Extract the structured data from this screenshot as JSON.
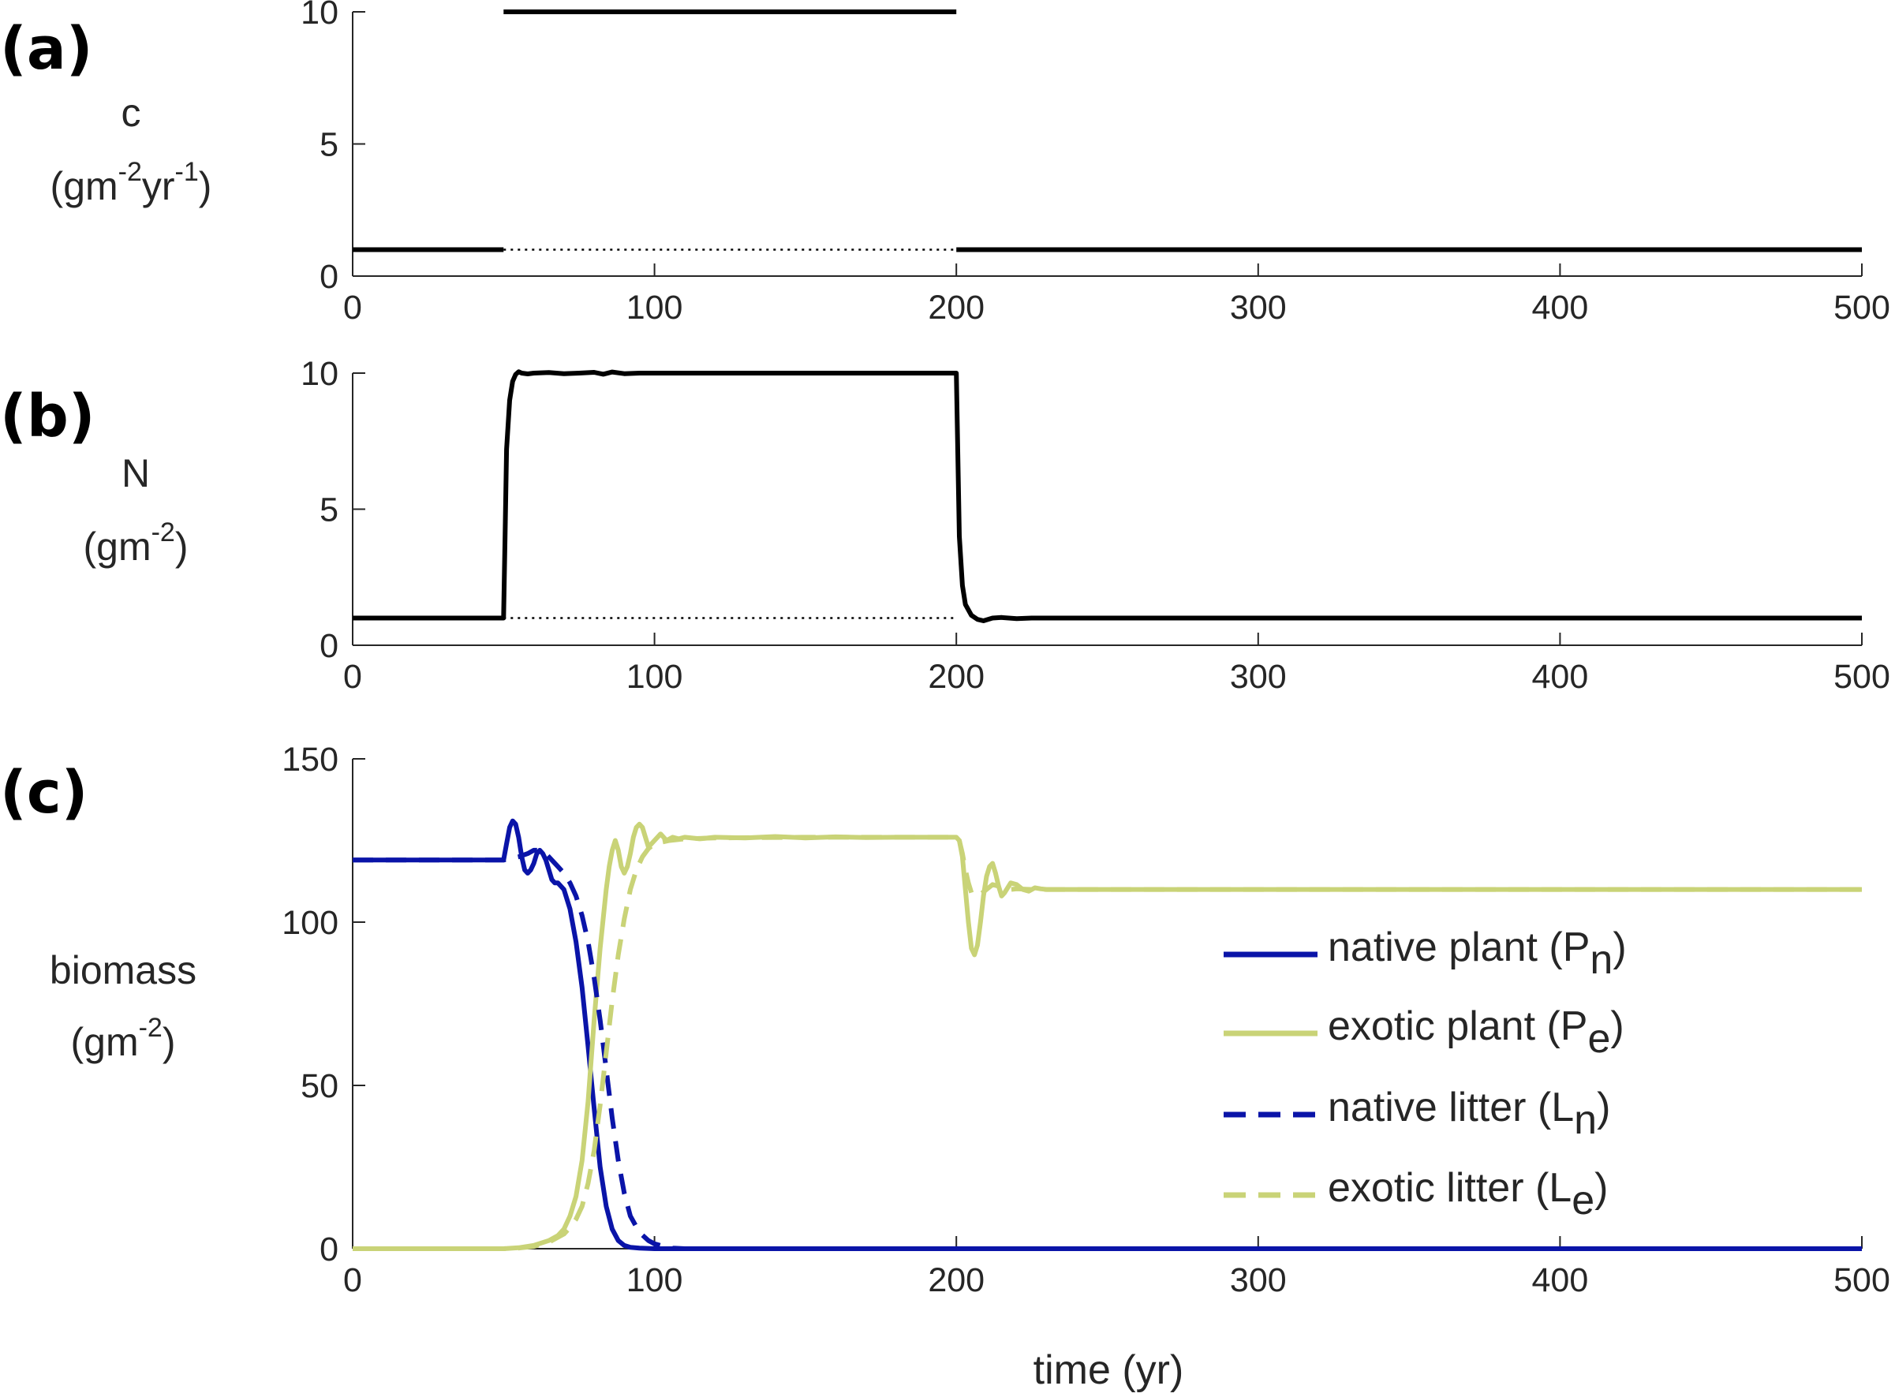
{
  "chart_data": [
    {
      "panel_label": "(a)",
      "type": "line",
      "ylabel": {
        "main": "c",
        "unit_open": "(gm",
        "sup1": "-2",
        "mid": "yr",
        "sup2": "-1",
        "unit_close": ")"
      },
      "xlim": [
        0,
        500
      ],
      "ylim": [
        0,
        10
      ],
      "xticks": [
        "0",
        "100",
        "200",
        "300",
        "400",
        "500"
      ],
      "yticks": [
        "0",
        "5",
        "10"
      ],
      "series": [
        {
          "style": "solid",
          "color": "#000000",
          "x": [
            0,
            50
          ],
          "y": [
            1,
            1
          ]
        },
        {
          "style": "solid",
          "color": "#000000",
          "x": [
            50,
            200
          ],
          "y": [
            10,
            10
          ]
        },
        {
          "style": "solid",
          "color": "#000000",
          "x": [
            200,
            500
          ],
          "y": [
            1,
            1
          ]
        },
        {
          "style": "dotted",
          "color": "#000000",
          "x": [
            50,
            200
          ],
          "y": [
            1,
            1
          ]
        }
      ]
    },
    {
      "panel_label": "(b)",
      "type": "line",
      "ylabel": {
        "main": "N",
        "unit_open": "(gm",
        "sup1": "-2",
        "unit_close": ")"
      },
      "xlim": [
        0,
        500
      ],
      "ylim": [
        0,
        10
      ],
      "xticks": [
        "0",
        "100",
        "200",
        "300",
        "400",
        "500"
      ],
      "yticks": [
        "0",
        "5",
        "10"
      ],
      "series": [
        {
          "style": "solid",
          "color": "#000000",
          "x": [
            0,
            50,
            50.5,
            51,
            52,
            53,
            54,
            55,
            56,
            58,
            60,
            65,
            70,
            75,
            80,
            83,
            86,
            90,
            95,
            100,
            120,
            150,
            180,
            199.5,
            200,
            200.5,
            201,
            202,
            203,
            205,
            207,
            209,
            212,
            215,
            220,
            225,
            230,
            240,
            500
          ],
          "y": [
            1,
            1,
            4,
            7.2,
            9.0,
            9.7,
            9.95,
            10.05,
            10.0,
            9.97,
            10.0,
            10.02,
            9.98,
            10.0,
            10.03,
            9.96,
            10.04,
            9.98,
            10.0,
            10.0,
            10.0,
            10.0,
            10.0,
            10.0,
            10.0,
            7,
            4,
            2.2,
            1.5,
            1.1,
            0.95,
            0.9,
            1.0,
            1.02,
            0.98,
            1.0,
            1.0,
            1.0,
            1.0
          ]
        },
        {
          "style": "dotted",
          "color": "#000000",
          "x": [
            50,
            200
          ],
          "y": [
            1,
            1
          ]
        }
      ]
    },
    {
      "panel_label": "(c)",
      "type": "line",
      "ylabel": {
        "main": "biomass",
        "unit_open": "(gm",
        "sup1": "-2",
        "unit_close": ")"
      },
      "xlabel": "time (yr)",
      "xlim": [
        0,
        500
      ],
      "ylim": [
        0,
        150
      ],
      "xticks": [
        "0",
        "100",
        "200",
        "300",
        "400",
        "500"
      ],
      "yticks": [
        "0",
        "50",
        "100",
        "150"
      ],
      "legend_position": "right",
      "series": [
        {
          "name": "native plant (P",
          "sub": "n",
          "style": "solid",
          "color": "#0a14a8",
          "x": [
            0,
            50,
            51,
            52,
            53,
            54,
            55,
            56,
            57,
            58,
            59,
            60,
            61,
            62,
            63,
            64,
            65,
            66,
            67,
            68,
            70,
            72,
            74,
            76,
            78,
            80,
            82,
            84,
            86,
            88,
            90,
            92,
            95,
            100,
            500
          ],
          "y": [
            119,
            119,
            124,
            129,
            131,
            130,
            126,
            120,
            116,
            115,
            116,
            118,
            121,
            122,
            121,
            119,
            116,
            113,
            112,
            112,
            110,
            104,
            94,
            80,
            62,
            43,
            25,
            13,
            6,
            2.5,
            1,
            0.4,
            0.2,
            0,
            0
          ]
        },
        {
          "name": "exotic plant (P",
          "sub": "e",
          "style": "solid",
          "color": "#c9d377",
          "x": [
            0,
            50,
            55,
            60,
            65,
            68,
            70,
            72,
            74,
            76,
            78,
            80,
            82,
            84,
            85,
            86,
            87,
            88,
            89,
            90,
            91,
            92,
            93,
            94,
            95,
            96,
            97,
            98,
            100,
            102,
            104,
            106,
            108,
            110,
            115,
            120,
            130,
            140,
            150,
            160,
            170,
            180,
            190,
            199,
            200,
            201,
            202,
            203,
            204,
            205,
            206,
            207,
            208,
            209,
            210,
            211,
            212,
            213,
            214,
            215,
            216,
            218,
            220,
            222,
            224,
            226,
            228,
            230,
            240,
            500
          ],
          "y": [
            0,
            0,
            0.3,
            1,
            2.5,
            4,
            6,
            10,
            16,
            27,
            45,
            70,
            92,
            110,
            117,
            122,
            125,
            122,
            117,
            115,
            117,
            121,
            126,
            129,
            130,
            129,
            126,
            123,
            125,
            127,
            125,
            126,
            125.5,
            126,
            125.5,
            126,
            125.8,
            126.2,
            125.8,
            126.1,
            125.9,
            126,
            126,
            126,
            126,
            125,
            120,
            110,
            100,
            92,
            90,
            93,
            100,
            108,
            114,
            117,
            118,
            115,
            111,
            108,
            109,
            112,
            111.5,
            110,
            109.5,
            110.5,
            110.2,
            110,
            110,
            110
          ]
        },
        {
          "name": "native litter (L",
          "sub": "n",
          "style": "dashed",
          "color": "#0a14a8",
          "x": [
            0,
            50,
            55,
            58,
            60,
            62,
            64,
            66,
            68,
            70,
            72,
            74,
            76,
            78,
            80,
            82,
            84,
            86,
            88,
            90,
            92,
            95,
            98,
            100,
            103,
            106,
            110,
            500
          ],
          "y": [
            119,
            119,
            120,
            121,
            122,
            122,
            121,
            119,
            117,
            115,
            112,
            108,
            102,
            94,
            83,
            70,
            55,
            40,
            27,
            17,
            10,
            5,
            2.5,
            1.5,
            0.7,
            0.2,
            0,
            0
          ]
        },
        {
          "name": "exotic litter (L",
          "sub": "e",
          "style": "dashed",
          "color": "#c9d377",
          "x": [
            0,
            50,
            55,
            60,
            65,
            70,
            72,
            74,
            76,
            78,
            80,
            82,
            84,
            86,
            88,
            90,
            92,
            94,
            96,
            98,
            100,
            105,
            110,
            120,
            150,
            199,
            200,
            201,
            202,
            203,
            204,
            205,
            206,
            208,
            210,
            212,
            214,
            216,
            218,
            220,
            225,
            230,
            500
          ],
          "y": [
            0,
            0,
            0.2,
            0.7,
            2,
            4.5,
            6.5,
            9,
            13,
            20,
            30,
            44,
            60,
            76,
            90,
            101,
            110,
            116,
            120,
            122.5,
            124,
            125,
            125.5,
            125.8,
            126,
            126,
            126,
            125,
            121,
            116,
            112,
            109,
            108,
            108.5,
            110,
            111.5,
            111,
            110.5,
            110,
            110.2,
            110,
            110,
            110
          ]
        }
      ]
    }
  ]
}
